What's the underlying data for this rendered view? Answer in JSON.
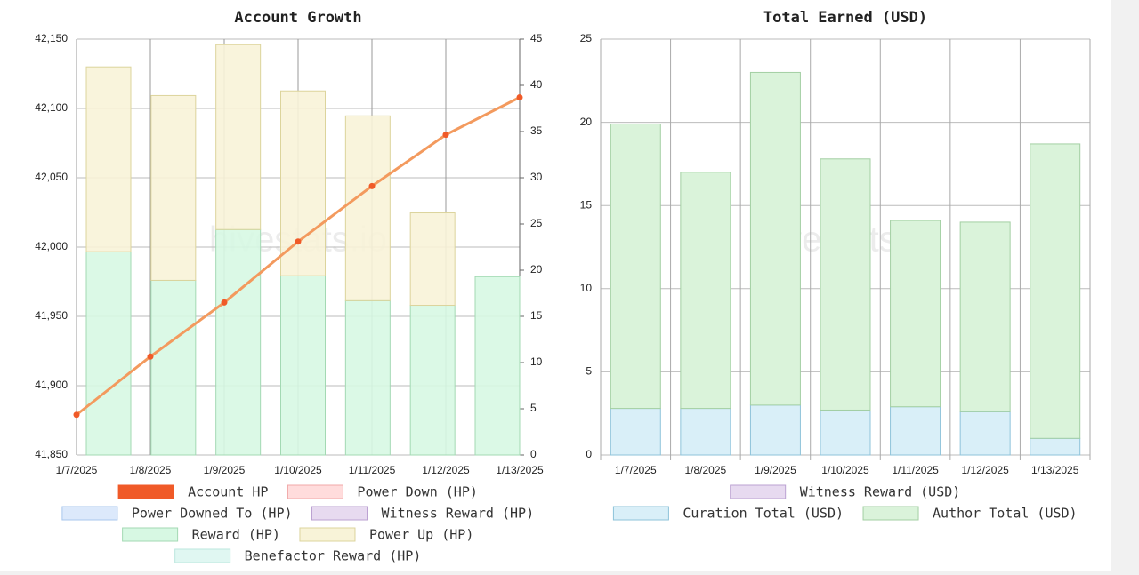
{
  "chart_data": [
    {
      "type": "combo",
      "title": "Account Growth",
      "watermark": "hivestats.io",
      "categories": [
        "1/7/2025",
        "1/8/2025",
        "1/9/2025",
        "1/10/2025",
        "1/11/2025",
        "1/12/2025",
        "1/13/2025"
      ],
      "ylim": [
        41850,
        42150
      ],
      "yticks": [
        {
          "value": 41850,
          "label": "41,850"
        },
        {
          "value": 41900,
          "label": "41,900"
        },
        {
          "value": 41950,
          "label": "41,950"
        },
        {
          "value": 42000,
          "label": "42,000"
        },
        {
          "value": 42050,
          "label": "42,050"
        },
        {
          "value": 42100,
          "label": "42,100"
        },
        {
          "value": 42150,
          "label": "42,150"
        }
      ],
      "y2lim": [
        0,
        45
      ],
      "y2ticks": [
        0,
        5,
        10,
        15,
        20,
        25,
        30,
        35,
        40,
        45
      ],
      "grid": true,
      "series": [
        {
          "name": "Account HP",
          "kind": "line",
          "axis": "y",
          "color": "#f05a28",
          "line_color": "#f39a5e",
          "values": [
            41879,
            41921,
            41960,
            42004,
            42044,
            42081,
            42108
          ]
        },
        {
          "name": "Power Down (HP)",
          "kind": "bar",
          "axis": "y2",
          "color": "#ffdcdc",
          "border": "#f0a8a8",
          "values": [
            0,
            0,
            0,
            0,
            0,
            0,
            0
          ]
        },
        {
          "name": "Power Downed To (HP)",
          "kind": "bar",
          "axis": "y2",
          "color": "#dce9fb",
          "border": "#a9c7ee",
          "values": [
            0,
            0,
            0,
            0,
            0,
            0,
            0
          ]
        },
        {
          "name": "Witness Reward (HP)",
          "kind": "bar",
          "axis": "y2",
          "color": "#e7daf0",
          "border": "#bba2d2",
          "values": [
            0,
            0,
            0,
            0,
            0,
            0,
            0
          ]
        },
        {
          "name": "Reward (HP)",
          "kind": "bar",
          "axis": "y2",
          "color": "#d7f8e3",
          "border": "#a3d9b3",
          "values": [
            22.0,
            18.9,
            24.4,
            19.4,
            16.7,
            16.2,
            19.3
          ]
        },
        {
          "name": "Power Up (HP)",
          "kind": "bar",
          "axis": "y2",
          "color": "#f8f3d8",
          "border": "#dcd49c",
          "values": [
            20,
            20,
            20,
            20,
            20,
            10,
            0
          ]
        },
        {
          "name": "Benefactor Reward (HP)",
          "kind": "bar",
          "axis": "y2",
          "color": "#e0f7f2",
          "border": "#bbe7de",
          "values": [
            0,
            0,
            0,
            0,
            0,
            0,
            0
          ]
        }
      ]
    },
    {
      "type": "stacked_bar",
      "title": "Total Earned (USD)",
      "watermark": "hivestats.io",
      "categories": [
        "1/7/2025",
        "1/8/2025",
        "1/9/2025",
        "1/10/2025",
        "1/11/2025",
        "1/12/2025",
        "1/13/2025"
      ],
      "ylim": [
        0,
        25
      ],
      "yticks": [
        0,
        5,
        10,
        15,
        20,
        25
      ],
      "grid": true,
      "series": [
        {
          "name": "Witness Reward (USD)",
          "color": "#e7daf0",
          "border": "#bba2d2",
          "values": [
            0,
            0,
            0,
            0,
            0,
            0,
            0
          ]
        },
        {
          "name": "Curation Total (USD)",
          "color": "#d9eff8",
          "border": "#8ec3da",
          "values": [
            2.8,
            2.8,
            3.0,
            2.7,
            2.9,
            2.6,
            1.0
          ]
        },
        {
          "name": "Author Total (USD)",
          "color": "#daf3da",
          "border": "#a3cfa3",
          "values": [
            17.1,
            14.2,
            20.0,
            15.1,
            11.2,
            11.4,
            17.7
          ]
        }
      ]
    }
  ]
}
